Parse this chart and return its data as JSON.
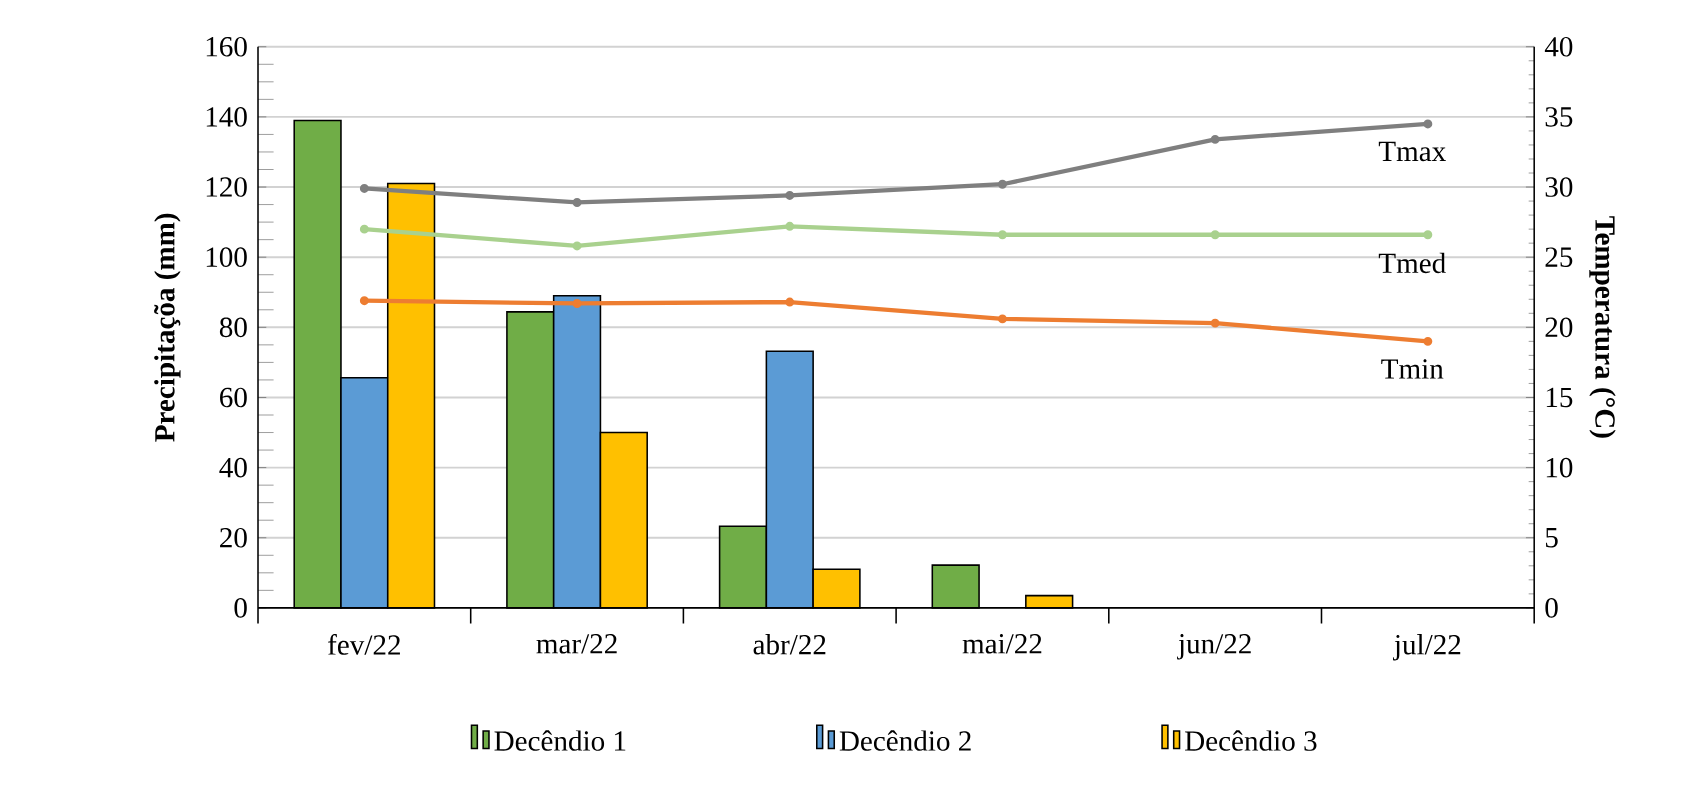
{
  "chart_data": {
    "type": "bar",
    "categories": [
      "fev/22",
      "mar/22",
      "abr/22",
      "mai/22",
      "jun/22",
      "jul/22"
    ],
    "ylabel": "Precipitaçõa (mm)",
    "y2label": "Temperatura (°C)",
    "series": [
      {
        "name": "Decêndio 1",
        "color": "#70ad47",
        "values": [
          139,
          84.4,
          23.3,
          12.2,
          null,
          null
        ]
      },
      {
        "name": "Decêndio 2",
        "color": "#5b9bd5",
        "values": [
          65.6,
          89,
          73.2,
          null,
          null,
          null
        ]
      },
      {
        "name": "Decêndio 3",
        "color": "#ffc000",
        "values": [
          121,
          50,
          11,
          3.5,
          null,
          null
        ]
      },
      {
        "name": "Tmax",
        "type": "line",
        "axis": "y2",
        "marker": "circle",
        "color": "#7f7f7f",
        "values": [
          29.9,
          28.9,
          29.4,
          30.2,
          33.4,
          34.5
        ]
      },
      {
        "name": "Tmed",
        "type": "line",
        "axis": "y2",
        "marker": "circle",
        "color": "#a9d18e",
        "values": [
          27.0,
          25.8,
          27.2,
          26.6,
          26.6,
          26.6
        ]
      },
      {
        "name": "Tmin",
        "type": "line",
        "axis": "y2",
        "marker": "circle",
        "color": "#ed7d31",
        "values": [
          21.9,
          21.7,
          21.8,
          20.6,
          20.3,
          19.0
        ]
      }
    ],
    "ylim": [
      0,
      160
    ],
    "yticks": [
      0,
      20,
      40,
      60,
      80,
      100,
      120,
      140,
      160
    ],
    "y2lim": [
      0,
      40
    ],
    "y2ticks": [
      0,
      5,
      10,
      15,
      20,
      25,
      30,
      35,
      40
    ],
    "grid": "y",
    "legend": "bottom"
  }
}
